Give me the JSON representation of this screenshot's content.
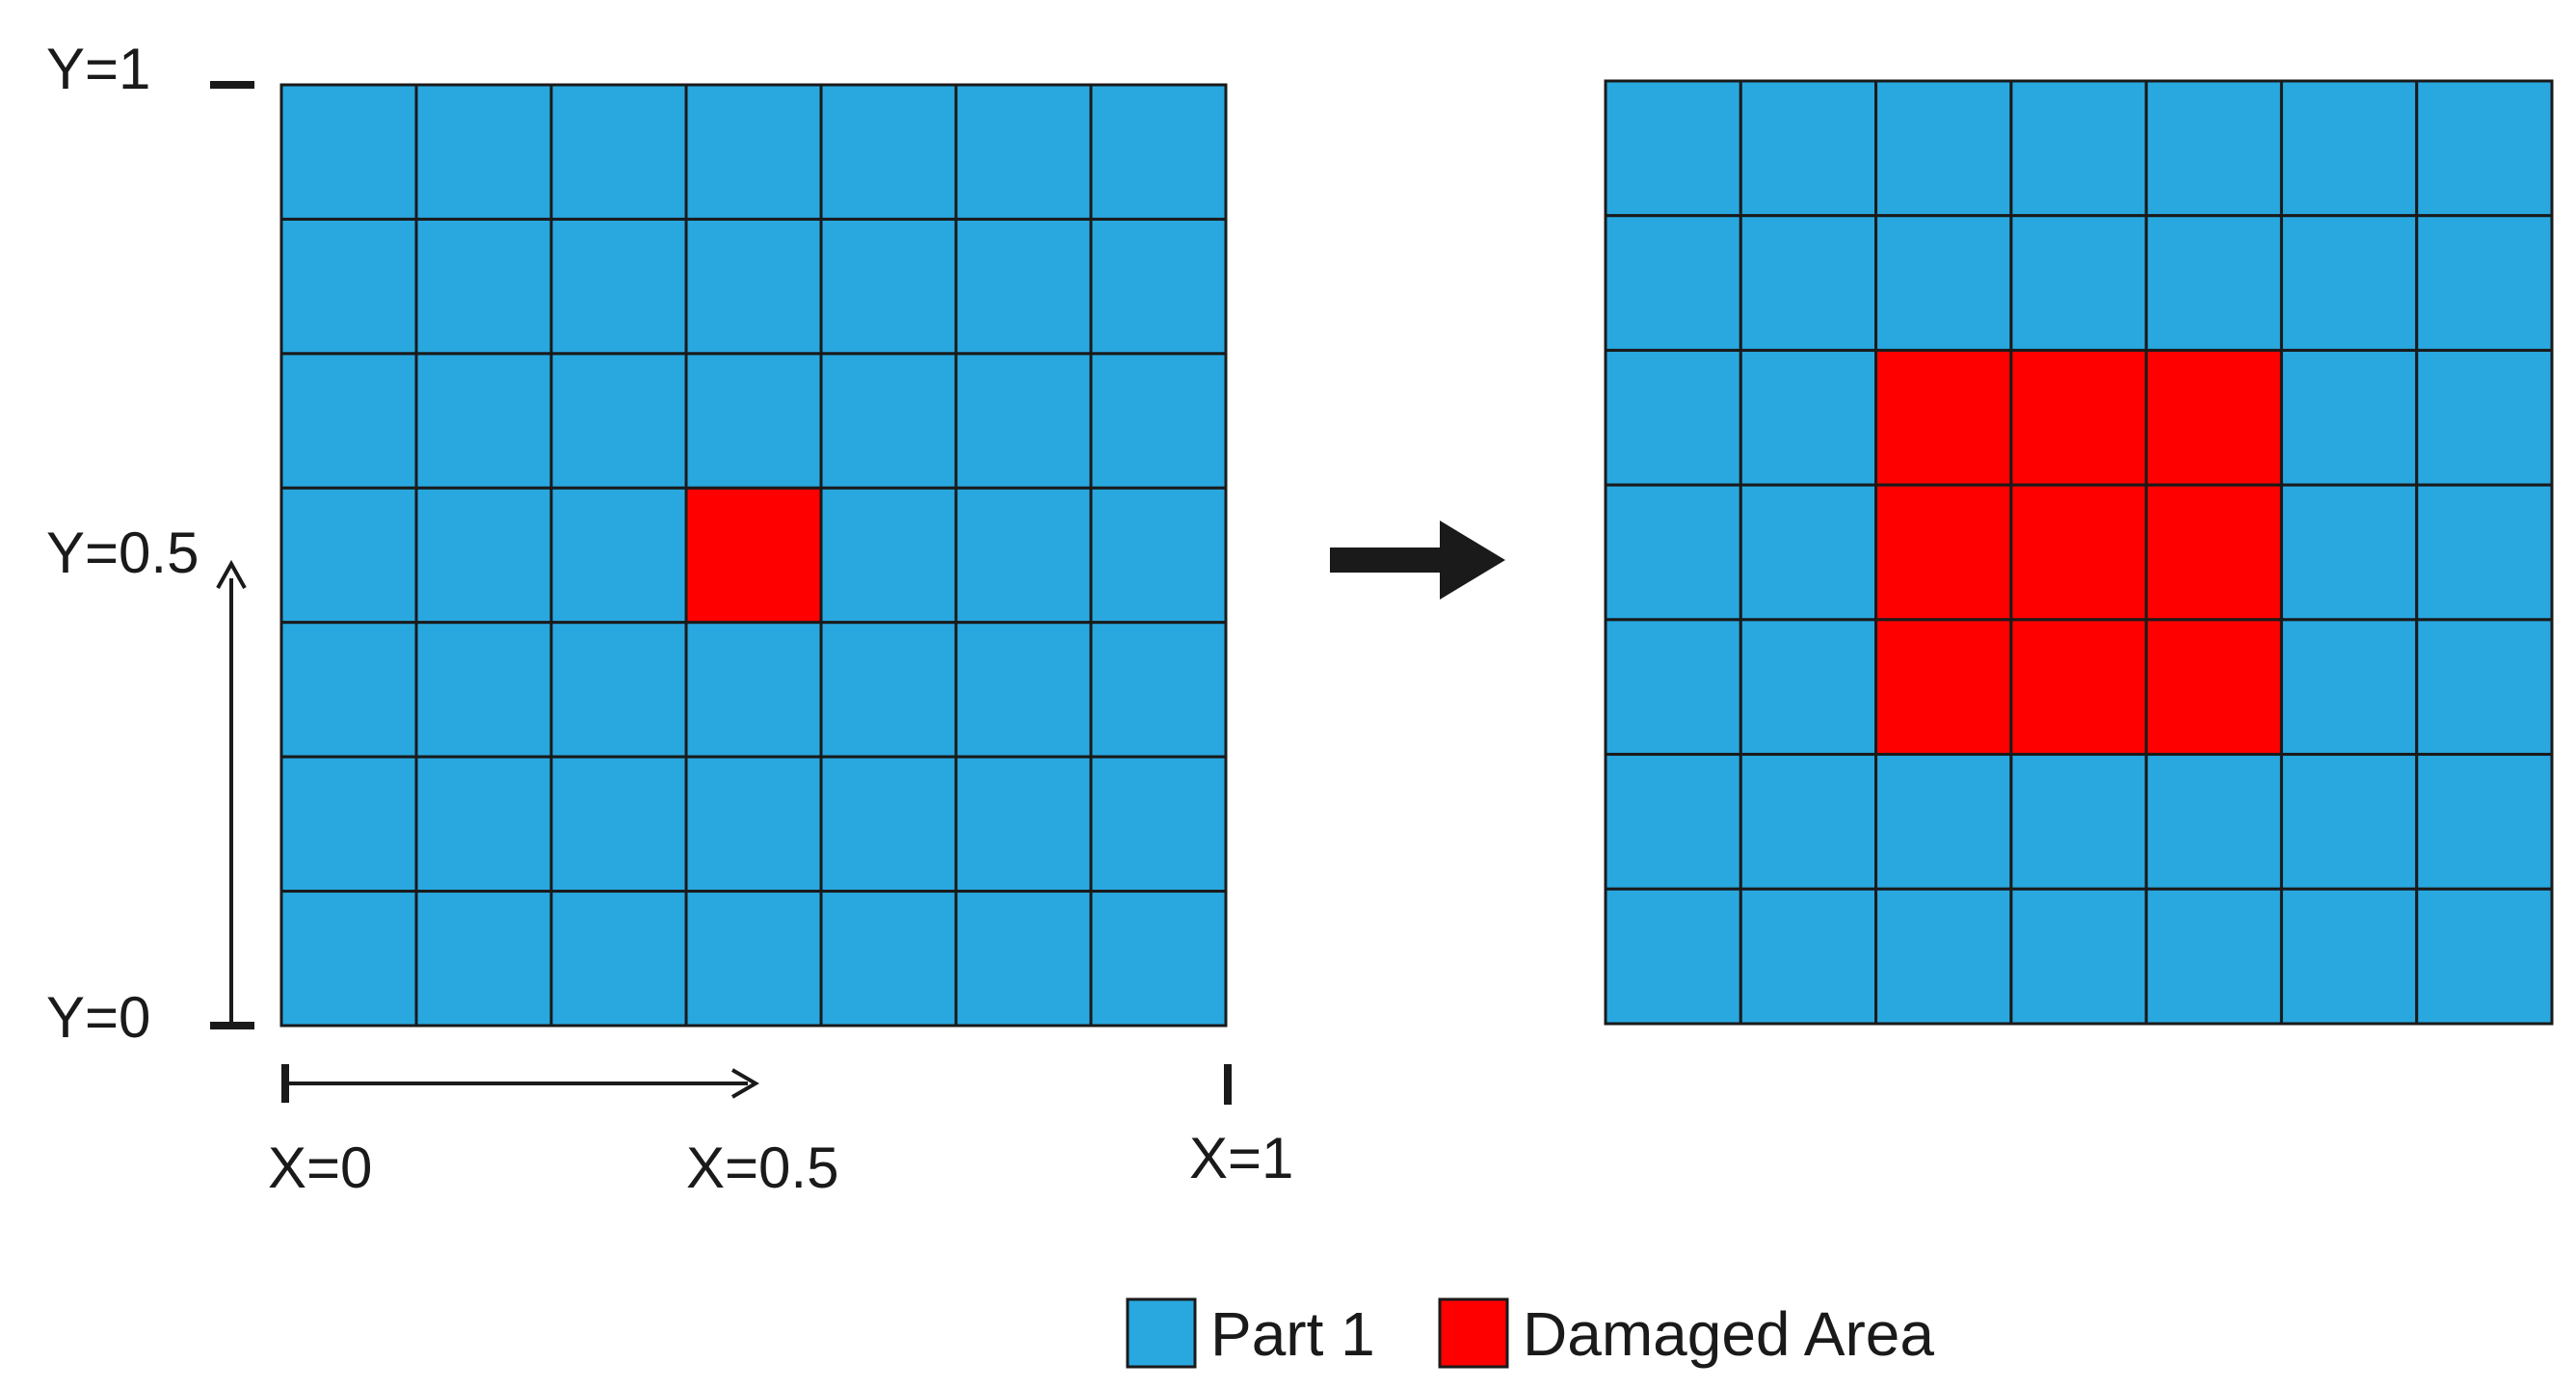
{
  "colors": {
    "part": "#29a8e0",
    "damaged": "#ff0000",
    "grid_line": "#1a1a1a",
    "arrow": "#1a1a1a"
  },
  "grids": [
    {
      "name": "left-grid",
      "rows": 7,
      "cols": 7,
      "damaged_cells": [
        [
          3,
          3
        ]
      ]
    },
    {
      "name": "right-grid",
      "rows": 7,
      "cols": 7,
      "damaged_cells": [
        [
          2,
          2
        ],
        [
          2,
          3
        ],
        [
          2,
          4
        ],
        [
          3,
          2
        ],
        [
          3,
          3
        ],
        [
          3,
          4
        ],
        [
          4,
          2
        ],
        [
          4,
          3
        ],
        [
          4,
          4
        ]
      ]
    }
  ],
  "axis_labels": {
    "y_top": "Y=1",
    "y_mid": "Y=0.5",
    "y_bottom": "Y=0",
    "x_left": "X=0",
    "x_mid": "X=0.5",
    "x_right": "X=1"
  },
  "legend": {
    "part": "Part 1",
    "damaged": "Damaged Area"
  },
  "icons": {
    "transition_arrow": "right-arrow-icon"
  }
}
